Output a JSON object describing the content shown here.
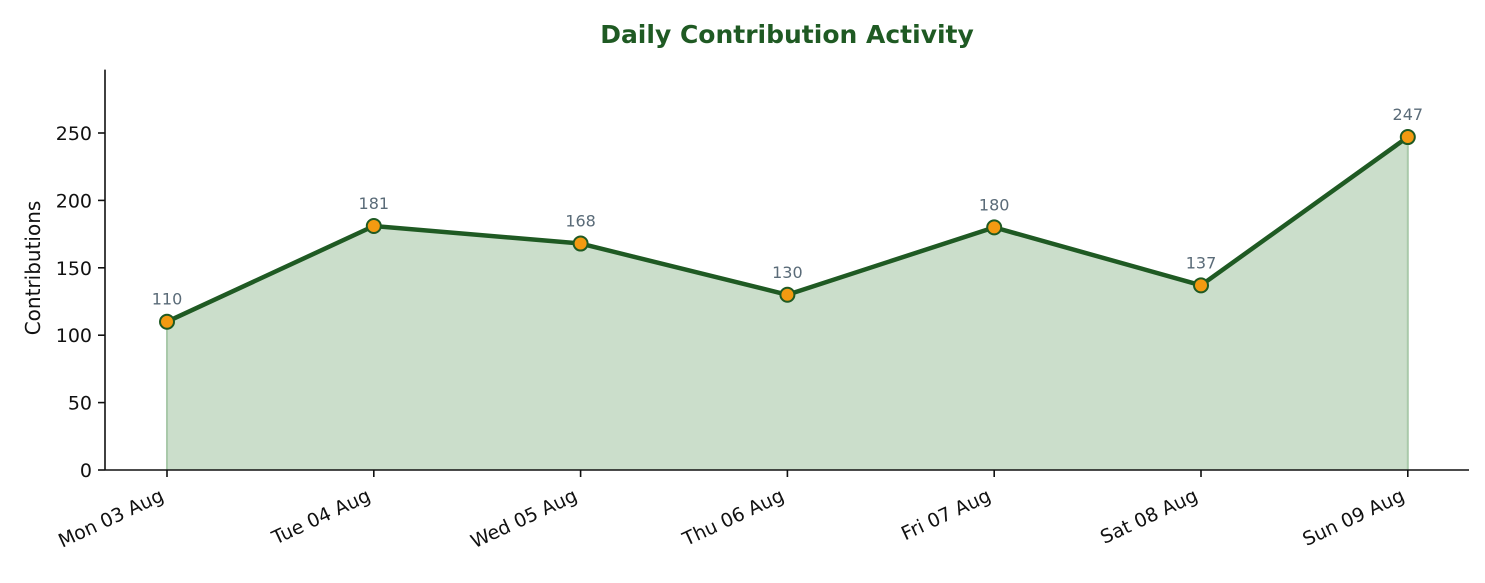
{
  "colors": {
    "title": "#1f5a23",
    "line": "#1f5a23",
    "area": "#cbdecb",
    "area_edge": "#a9c9aa",
    "marker_fill": "#f39a11",
    "marker_stroke": "#1f5a23",
    "data_label": "#5a6b78",
    "axis": "#111111"
  },
  "chart_data": {
    "type": "area",
    "title": "Daily Contribution Activity",
    "xlabel": "",
    "ylabel": "Contributions",
    "categories": [
      "Mon 03 Aug",
      "Tue 04 Aug",
      "Wed 05 Aug",
      "Thu 06 Aug",
      "Fri 07 Aug",
      "Sat 08 Aug",
      "Sun 09 Aug"
    ],
    "values": [
      110,
      181,
      168,
      130,
      180,
      137,
      247
    ],
    "data_labels": [
      "110",
      "181",
      "168",
      "130",
      "180",
      "137",
      "247"
    ],
    "ylim": [
      0,
      297
    ],
    "yticks": [
      0,
      50,
      100,
      150,
      200,
      250
    ],
    "grid": false,
    "legend": "none"
  }
}
